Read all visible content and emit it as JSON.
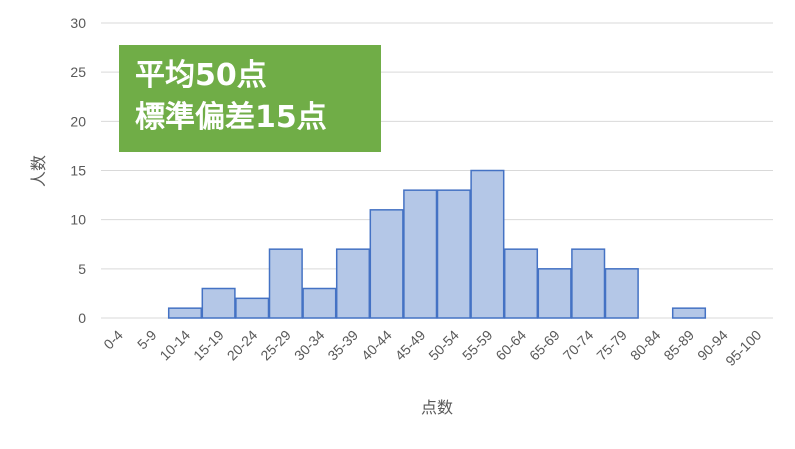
{
  "chart_data": {
    "type": "bar",
    "categories": [
      "0-4",
      "5-9",
      "10-14",
      "15-19",
      "20-24",
      "25-29",
      "30-34",
      "35-39",
      "40-44",
      "45-49",
      "50-54",
      "55-59",
      "60-64",
      "65-69",
      "70-74",
      "75-79",
      "80-84",
      "85-89",
      "90-94",
      "95-100"
    ],
    "values": [
      0,
      0,
      1,
      3,
      2,
      7,
      3,
      7,
      11,
      13,
      13,
      15,
      7,
      5,
      7,
      5,
      0,
      1,
      0,
      0
    ],
    "xlabel": "点数",
    "ylabel": "人数",
    "ylim": [
      0,
      30
    ],
    "yticks": [
      0,
      5,
      10,
      15,
      20,
      25,
      30
    ],
    "grid": true,
    "colors": {
      "bar_fill": "#b4c7e7",
      "bar_stroke": "#4472c4",
      "grid": "#d9d9d9"
    }
  },
  "annotation": {
    "line1": "平均50点",
    "line2": "標準偏差15点",
    "background": "#70ad47"
  }
}
